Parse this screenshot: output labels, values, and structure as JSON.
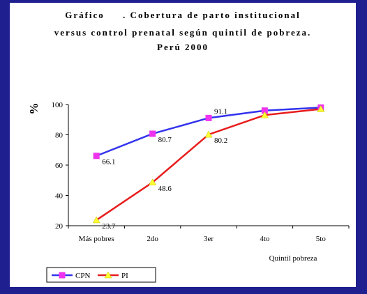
{
  "chart_data": {
    "type": "line",
    "title_lines": [
      "Gráfico     . Cobertura de parto institucional",
      "versus control prenatal según quintil de pobreza.",
      "Perú 2000"
    ],
    "ylabel": "%",
    "xlabel": "Quintil pobreza",
    "categories": [
      "Más pobres",
      "2do",
      "3er",
      "4to",
      "5to"
    ],
    "yticks": [
      20,
      40,
      60,
      80,
      100
    ],
    "ylim": [
      20,
      100
    ],
    "grid": false,
    "legend_position": "bottom-left",
    "series": [
      {
        "name": "CPN",
        "color": "#3333ee",
        "marker_color": "#ee33ee",
        "marker": "square",
        "values": [
          66.1,
          80.7,
          91.1,
          96,
          98
        ],
        "labels": [
          "66.1",
          "80.7",
          "91.1",
          "",
          ""
        ]
      },
      {
        "name": "PI",
        "color": "#e81c1c",
        "marker_color": "#ffff33",
        "marker": "triangle",
        "values": [
          23.7,
          48.6,
          80.2,
          93,
          97
        ],
        "labels": [
          "23.7",
          "48.6",
          "80.2",
          "",
          ""
        ]
      }
    ]
  }
}
